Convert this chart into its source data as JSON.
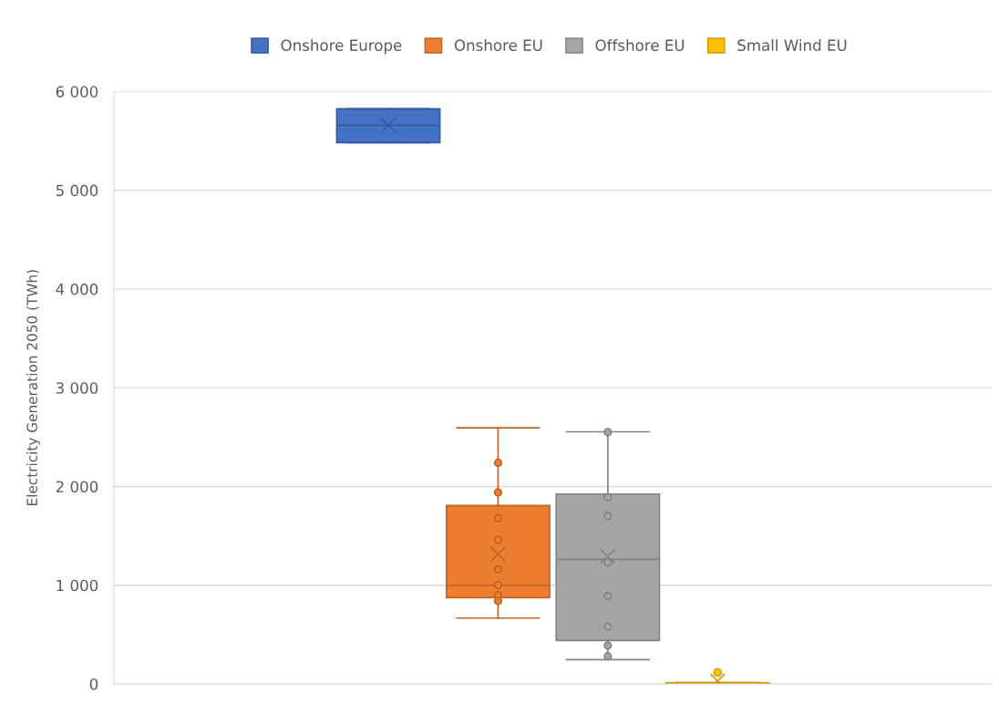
{
  "chart_data": {
    "type": "box",
    "ylabel": "Electricity Generation 2050 (TWh)",
    "categories": [
      null
    ],
    "series": [
      {
        "name": "Onshore Europe",
        "color": "#4472c4",
        "boxes": [
          {
            "low": 5483,
            "q1": 5483,
            "median": 5658,
            "q3": 5825,
            "high": 5825,
            "mean": 5658
          }
        ]
      },
      {
        "name": "Onshore EU",
        "color": "#ed7d31",
        "boxes": [
          {
            "low": 667,
            "q1": 874,
            "median": 1000,
            "q3": 1806,
            "high": 2594,
            "mean": 1314
          }
        ]
      },
      {
        "name": "Offshore EU",
        "color": "#a5a5a5",
        "boxes": [
          {
            "low": 246,
            "q1": 440,
            "median": 1262,
            "q3": 1923,
            "high": 2554,
            "mean": 1292
          }
        ]
      },
      {
        "name": "Small Wind EU",
        "color": "#ffc000",
        "boxes": [
          {
            "low": 0,
            "q1": 2,
            "median": 5,
            "q3": 10,
            "high": 15,
            "mean": 30,
            "outliers": [
              117
            ]
          }
        ]
      },
      {
        "type": "scatter",
        "color": "#ed7d31",
        "x": [
          null,
          null,
          null,
          null,
          null,
          null,
          null,
          null
        ],
        "values": [
          2240,
          1940,
          1680,
          1460,
          1160,
          1000,
          900,
          840
        ]
      },
      {
        "type": "scatter",
        "color": "#a5a5a5",
        "x": [
          null,
          null,
          null,
          null,
          null,
          null,
          null,
          null
        ],
        "values": [
          2550,
          1890,
          1700,
          1230,
          890,
          580,
          390,
          280
        ]
      }
    ],
    "ylim": [
      0,
      6000
    ],
    "yticks": [
      {
        "value": 0,
        "label": "0"
      },
      {
        "value": 1000,
        "label": "1 000"
      },
      {
        "value": 2000,
        "label": "2 000"
      },
      {
        "value": 3000,
        "label": "3 000"
      },
      {
        "value": 4000,
        "label": "4 000"
      },
      {
        "value": 5000,
        "label": "5 000"
      },
      {
        "value": 6000,
        "label": "6 000"
      }
    ],
    "grid": "y",
    "legend": "top",
    "marker": "circle",
    "tick_labels": "y"
  }
}
